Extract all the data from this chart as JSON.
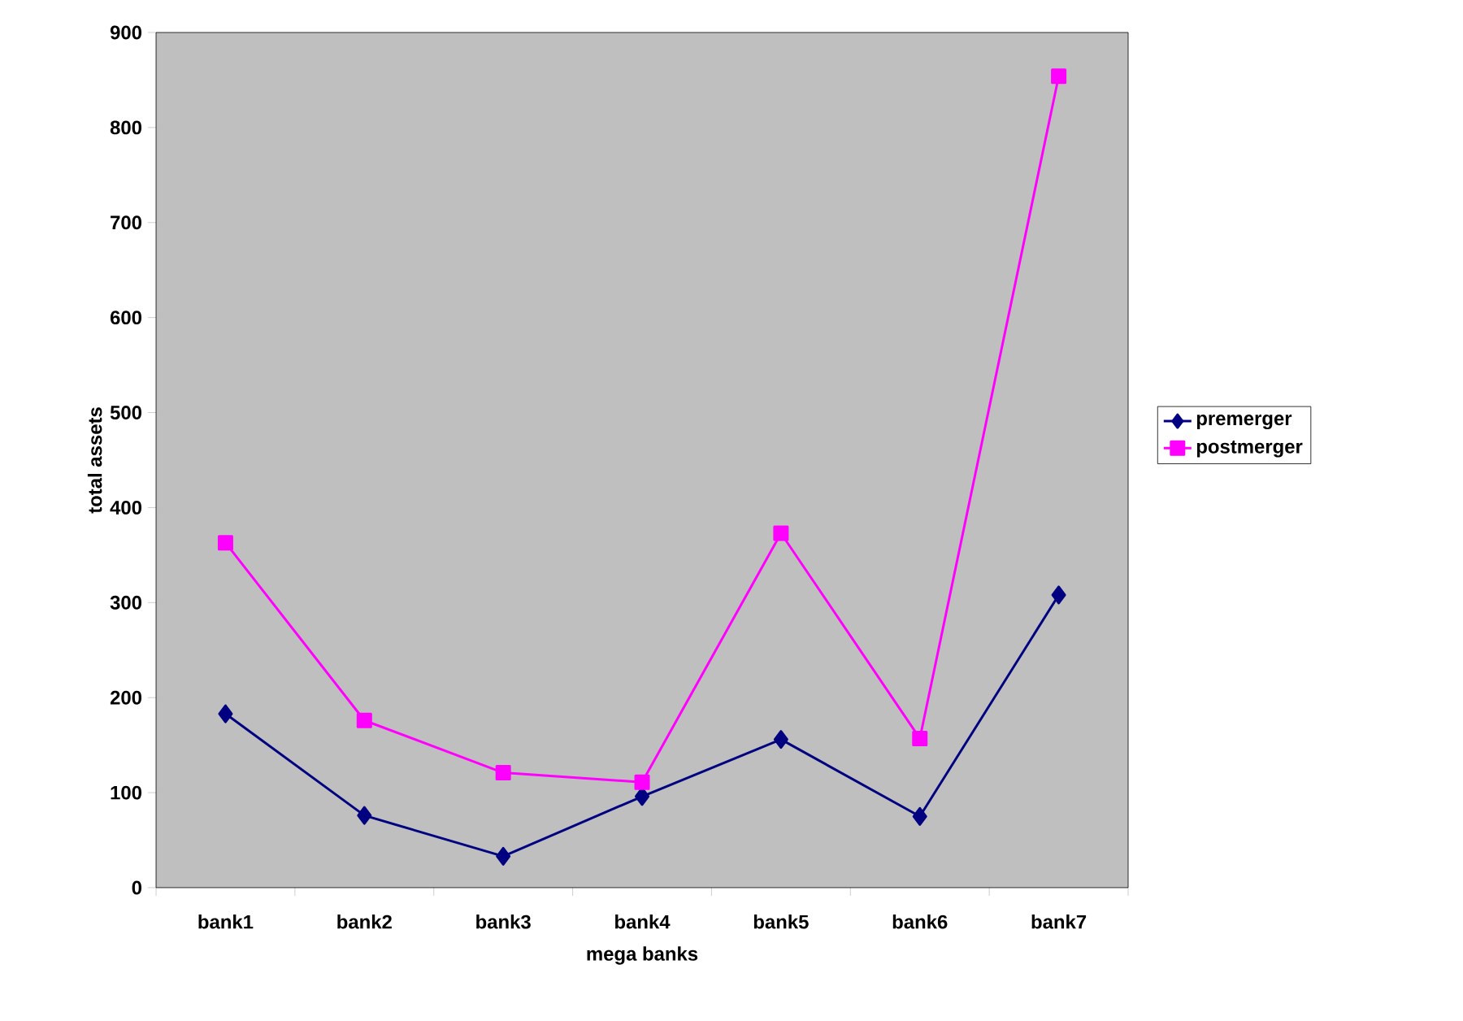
{
  "chart_data": {
    "type": "line",
    "xlabel": "mega banks",
    "ylabel": "total assets",
    "categories": [
      "bank1",
      "bank2",
      "bank3",
      "bank4",
      "bank5",
      "bank6",
      "bank7"
    ],
    "series": [
      {
        "name": "premerger",
        "color": "#000080",
        "marker": "diamond",
        "values": [
          183,
          76,
          33,
          96,
          156,
          75,
          308
        ]
      },
      {
        "name": "postmerger",
        "color": "#ff00ff",
        "marker": "square",
        "values": [
          363,
          176,
          121,
          111,
          373,
          157,
          854
        ]
      }
    ],
    "ylim": [
      0,
      900
    ],
    "yticks": [
      0,
      100,
      200,
      300,
      400,
      500,
      600,
      700,
      800,
      900
    ],
    "grid": false,
    "legend": "right"
  }
}
